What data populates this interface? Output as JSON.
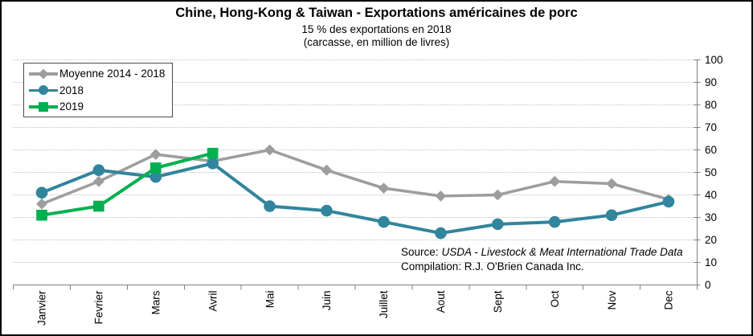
{
  "header": {
    "title": "Chine, Hong-Kong & Taiwan - Exportations américaines de porc",
    "subtitle_line1": "15 % des exportations en 2018",
    "subtitle_line2": "(carcasse, en million de livres)"
  },
  "source": {
    "label": "Source:",
    "reference": "USDA - Livestock & Meat International Trade Data",
    "compilation": "Compilation: R.J. O'Brien Canada Inc."
  },
  "chart_data": {
    "type": "line",
    "title": "Chine, Hong-Kong & Taiwan - Exportations américaines de porc",
    "categories": [
      "Janvier",
      "Fevrier",
      "Mars",
      "Avril",
      "Mai",
      "Juin",
      "Juillet",
      "Aout",
      "Sept",
      "Oct",
      "Nov",
      "Dec"
    ],
    "series": [
      {
        "name": "Moyenne 2014 - 2018",
        "marker": "diamond",
        "color": "#9D9D9D",
        "values": [
          36,
          46,
          58,
          55,
          60,
          51,
          43,
          39.5,
          40,
          46,
          45,
          38
        ]
      },
      {
        "name": "2018",
        "marker": "circle",
        "color": "#31859C",
        "values": [
          41,
          51,
          48,
          54,
          35,
          33,
          28,
          23,
          27,
          28,
          31,
          37
        ]
      },
      {
        "name": "2019",
        "marker": "square",
        "color": "#00B050",
        "values": [
          31,
          35,
          52,
          58.5,
          null,
          null,
          null,
          null,
          null,
          null,
          null,
          null
        ]
      }
    ],
    "xlabel": "",
    "ylabel": "",
    "ylim": [
      0,
      100
    ],
    "ytick_step": 10,
    "grid": true,
    "legend_position": "top-left",
    "axis_color": "#808080",
    "grid_color": "#A6A6A6"
  }
}
